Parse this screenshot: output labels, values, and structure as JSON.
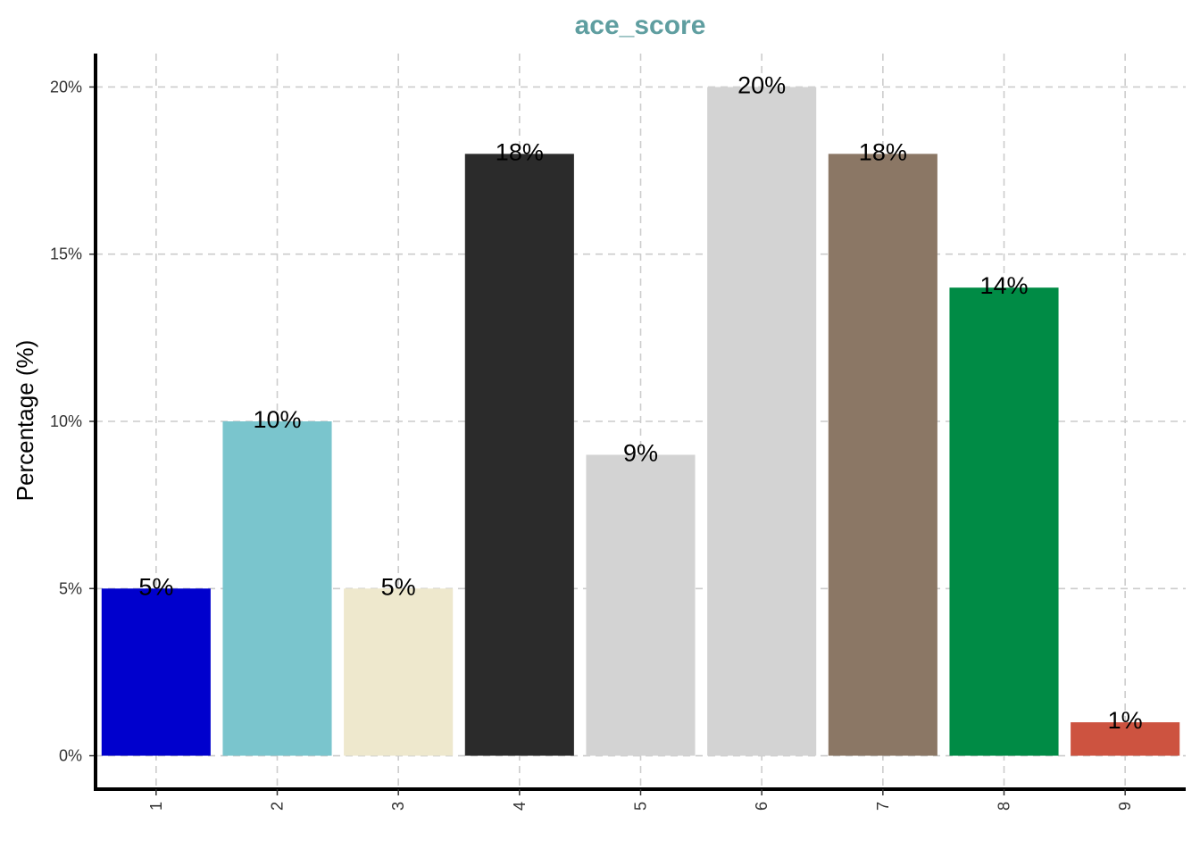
{
  "chart_data": {
    "type": "bar",
    "title": "ace_score",
    "xlabel": "",
    "ylabel": "Percentage (%)",
    "categories": [
      "1",
      "2",
      "3",
      "4",
      "5",
      "6",
      "7",
      "8",
      "9"
    ],
    "values": [
      5,
      10,
      5,
      18,
      9,
      20,
      18,
      14,
      1
    ],
    "data_labels": [
      "5%",
      "10%",
      "5%",
      "18%",
      "9%",
      "20%",
      "18%",
      "14%",
      "1%"
    ],
    "bar_colors": [
      "#0000CD",
      "#7AC5CD",
      "#EEE8CD",
      "#2B2B2B",
      "#D3D3D3",
      "#D3D3D3",
      "#8B7765",
      "#008B45",
      "#CD5340"
    ],
    "yticks": [
      0,
      5,
      10,
      15,
      20
    ],
    "ytick_labels": [
      "0%",
      "5%",
      "10%",
      "15%",
      "20%"
    ],
    "ylim": [
      -1,
      21
    ],
    "grid": true,
    "legend": "none",
    "title_color": "#5F9EA0"
  }
}
